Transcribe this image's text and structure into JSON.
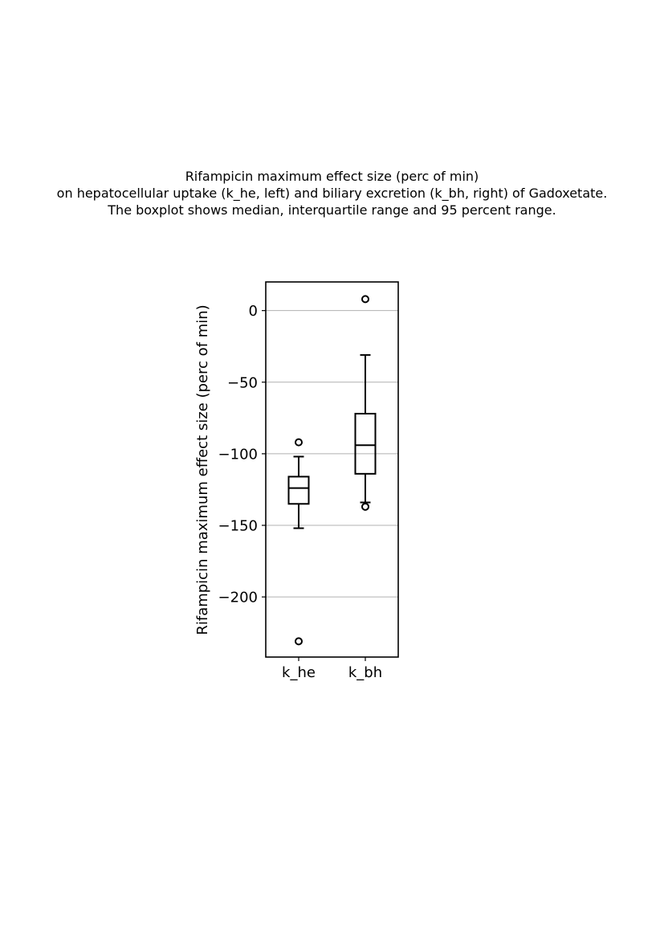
{
  "title_lines": [
    "Rifampicin maximum effect size (perc of min)",
    "on hepatocellular uptake (k_he, left) and biliary excretion (k_bh, right) of Gadoxetate.",
    "The boxplot shows median, interquartile range and 95 percent range."
  ],
  "chart_data": {
    "type": "box",
    "title": "Rifampicin maximum effect size (perc of min)\non hepatocellular uptake (k_he, left) and biliary excretion (k_bh, right) of Gadoxetate.\nThe boxplot shows median, interquartile range and 95 percent range.",
    "xlabel": "",
    "ylabel": "Rifampicin maximum effect size (perc of min)",
    "categories": [
      "k_he",
      "k_bh"
    ],
    "ylim": [
      -242,
      20
    ],
    "yticks": [
      0,
      -50,
      -100,
      -150,
      -200
    ],
    "ytick_labels": [
      "0",
      "−50",
      "−100",
      "−150",
      "−200"
    ],
    "grid": "y",
    "series": [
      {
        "category": "k_he",
        "whisker_low": -152,
        "q1": -135,
        "median": -124,
        "q3": -116,
        "whisker_high": -102,
        "outliers": [
          -92,
          -231
        ]
      },
      {
        "category": "k_bh",
        "whisker_low": -134,
        "q1": -114,
        "median": -94,
        "q3": -72,
        "whisker_high": -31,
        "outliers": [
          8,
          -137
        ]
      }
    ],
    "colors": {
      "box": "#000000",
      "grid": "#b0b0b0",
      "background": "#ffffff"
    }
  }
}
